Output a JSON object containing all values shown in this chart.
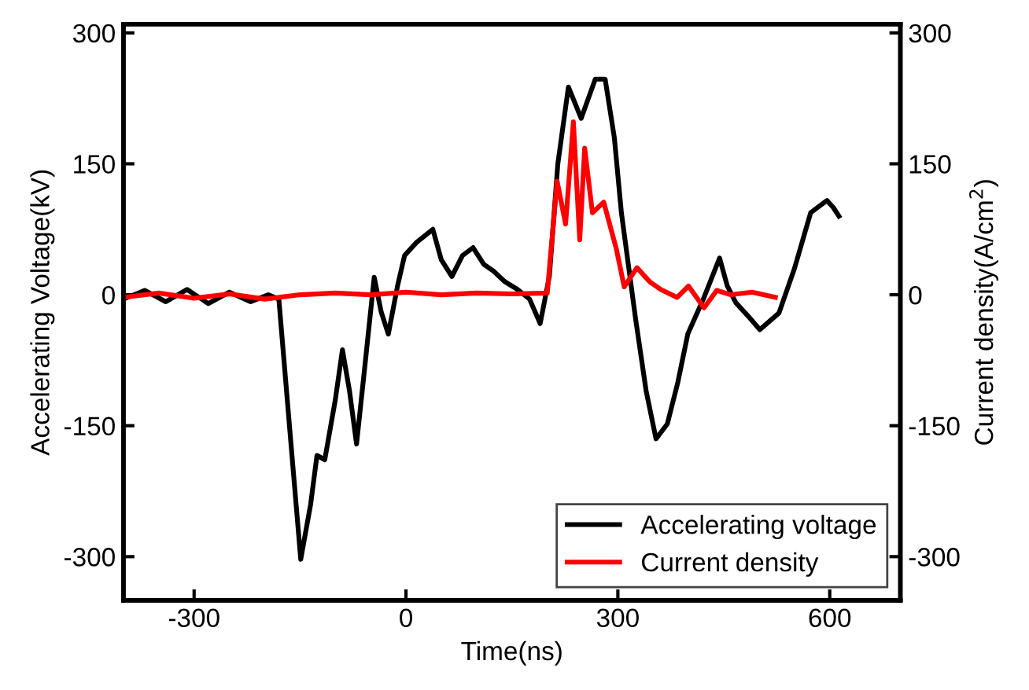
{
  "chart_data": {
    "type": "line",
    "xlabel": "Time(ns)",
    "ylabel": "Accelerating Voltage(kV)",
    "y2label": "Current density(A/cm$^{2}$)",
    "xlim": [
      -400,
      700
    ],
    "xticks": [
      -300,
      0,
      300,
      600
    ],
    "ylim": [
      -350,
      310
    ],
    "yticks": [
      -300,
      -150,
      0,
      150,
      300
    ],
    "y2lim": [
      -350,
      310
    ],
    "y2ticks": [
      -300,
      -150,
      0,
      150,
      300
    ],
    "legend": "bottom right",
    "grid": false,
    "line_style": "solid",
    "marker": "none",
    "series": [
      {
        "name": "Accelerating voltage",
        "color": "#000000",
        "x": [
          -400,
          -370,
          -340,
          -310,
          -280,
          -250,
          -220,
          -195,
          -180,
          -165,
          -149,
          -135,
          -126,
          -115,
          -100,
          -90,
          -80,
          -70,
          -58,
          -45,
          -35,
          -25,
          -12,
          -2,
          15,
          38,
          50,
          65,
          80,
          95,
          110,
          124,
          140,
          158,
          175,
          190,
          203,
          215,
          230,
          248,
          268,
          282,
          295,
          305,
          325,
          340,
          354,
          370,
          385,
          399,
          422,
          444,
          455,
          467,
          485,
          501,
          528,
          550,
          573,
          596,
          605,
          613
        ],
        "values": [
          -5,
          5,
          -8,
          6,
          -10,
          3,
          -8,
          0,
          -5,
          -150,
          -303,
          -240,
          -184,
          -189,
          -120,
          -63,
          -110,
          -171,
          -80,
          20,
          -20,
          -45,
          10,
          45,
          60,
          75,
          40,
          21,
          45,
          54,
          35,
          27,
          15,
          6,
          -5,
          -33,
          21,
          150,
          238,
          202,
          247,
          247,
          180,
          94,
          -27,
          -110,
          -165,
          -148,
          -100,
          -45,
          -3,
          42,
          10,
          -9,
          -25,
          -40,
          -21,
          30,
          94,
          108,
          100,
          90
        ]
      },
      {
        "name": "Current density",
        "color": "#ff0000",
        "axis": "y2",
        "x": [
          -400,
          -350,
          -300,
          -250,
          -200,
          -150,
          -100,
          -50,
          0,
          50,
          100,
          150,
          200,
          214,
          226,
          237,
          246,
          253,
          264,
          280,
          298,
          309,
          327,
          345,
          361,
          384,
          400,
          422,
          440,
          460,
          490,
          523
        ],
        "values": [
          -3,
          2,
          -4,
          1,
          -5,
          0,
          2,
          0,
          3,
          0,
          2,
          1,
          2,
          130,
          81,
          198,
          63,
          168,
          94,
          106,
          52,
          9,
          31,
          15,
          6,
          -3,
          10,
          -15,
          5,
          0,
          3,
          -3
        ]
      }
    ]
  }
}
